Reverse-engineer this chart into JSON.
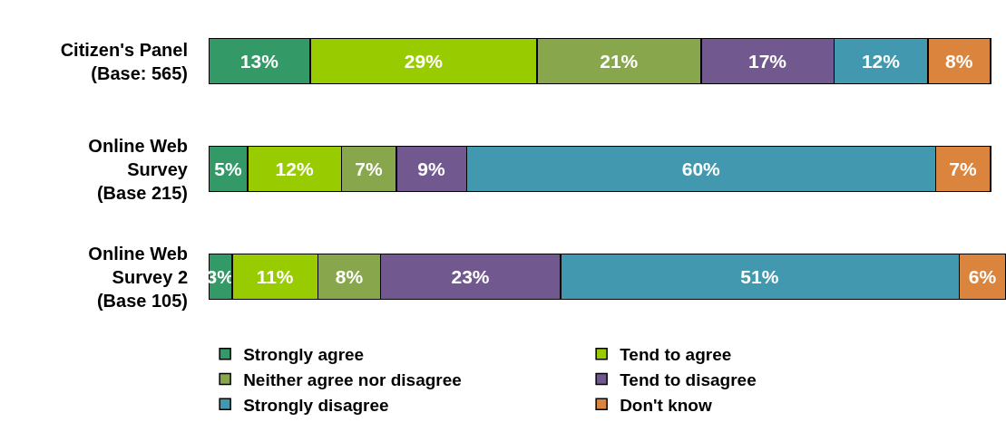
{
  "chart_data": {
    "type": "bar",
    "orientation": "horizontal",
    "stacked": true,
    "legend": "bottom",
    "categories": [
      "Citizen's Panel\n(Base: 565)",
      "Online Web\nSurvey\n(Base 215)",
      "Online Web\nSurvey 2\n(Base 105)"
    ],
    "series": [
      {
        "name": "Strongly agree",
        "color": "#339966",
        "values": [
          13,
          5,
          3
        ],
        "value_labels": [
          "13%",
          "5%",
          "3%"
        ]
      },
      {
        "name": "Tend to agree",
        "color": "#99cc00",
        "values": [
          29,
          12,
          11
        ],
        "value_labels": [
          "29%",
          "12%",
          "11%"
        ]
      },
      {
        "name": "Neither agree nor disagree",
        "color": "#88a64c",
        "values": [
          21,
          7,
          8
        ],
        "value_labels": [
          "21%",
          "7%",
          "8%"
        ]
      },
      {
        "name": "Tend to disagree",
        "color": "#71588f",
        "values": [
          17,
          9,
          23
        ],
        "value_labels": [
          "17%",
          "9%",
          "23%"
        ]
      },
      {
        "name": "Strongly disagree",
        "color": "#4198af",
        "values": [
          12,
          60,
          51
        ],
        "value_labels": [
          "12%",
          "60%",
          "51%"
        ]
      },
      {
        "name": "Don't know",
        "color": "#db843d",
        "values": [
          8,
          7,
          6
        ],
        "value_labels": [
          "8%",
          "7%",
          "6%"
        ]
      }
    ]
  }
}
